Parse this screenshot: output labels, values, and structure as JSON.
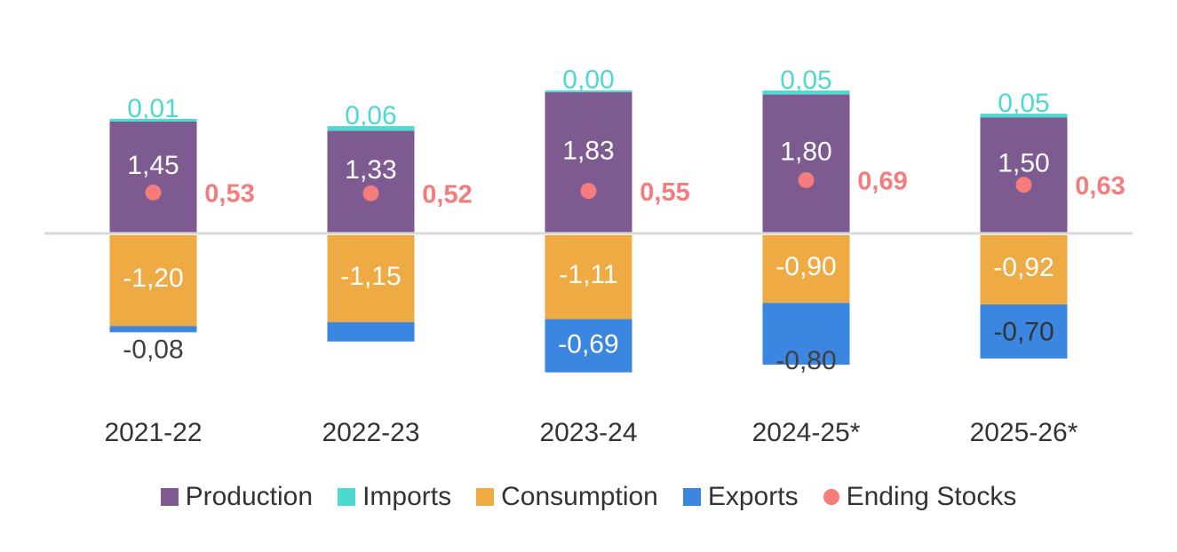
{
  "chart_data": {
    "type": "bar",
    "stacked": true,
    "categories": [
      "2021-22",
      "2022-23",
      "2023-24",
      "2024-25*",
      "2025-26*"
    ],
    "series": [
      {
        "name": "Production",
        "color": "#7d5a8f",
        "values": [
          1.45,
          1.33,
          1.83,
          1.8,
          1.5
        ],
        "labels": [
          "1,45",
          "1,33",
          "1,83",
          "1,80",
          "1,50"
        ]
      },
      {
        "name": "Imports",
        "color": "#4dd9d0",
        "values": [
          0.01,
          0.06,
          0.0,
          0.05,
          0.05
        ],
        "labels": [
          "0,01",
          "0,06",
          "0,00",
          "0,05",
          "0,05"
        ]
      },
      {
        "name": "Consumption",
        "color": "#eeab44",
        "values": [
          -1.2,
          -1.15,
          -1.11,
          -0.9,
          -0.92
        ],
        "labels": [
          "-1,20",
          "-1,15",
          "-1,11",
          "-0,90",
          "-0,92"
        ]
      },
      {
        "name": "Exports",
        "color": "#3b86e0",
        "values": [
          -0.08,
          -0.25,
          -0.69,
          -0.8,
          -0.7
        ],
        "labels": [
          "-0,08",
          "",
          "-0,69",
          "-0,80",
          "-0,70"
        ]
      }
    ],
    "line_series": {
      "name": "Ending Stocks",
      "type": "scatter",
      "color": "#f47c7c",
      "values": [
        0.53,
        0.52,
        0.55,
        0.69,
        0.63
      ],
      "labels": [
        "0,53",
        "0,52",
        "0,55",
        "0,69",
        "0,63"
      ]
    },
    "ylim": [
      -2.0,
      2.0
    ],
    "grid": false,
    "legend_position": "bottom",
    "title": "",
    "xlabel": "",
    "ylabel": ""
  },
  "legend": [
    {
      "name": "Production",
      "color": "#7d5a8f",
      "shape": "square"
    },
    {
      "name": "Imports",
      "color": "#4dd9d0",
      "shape": "square"
    },
    {
      "name": "Consumption",
      "color": "#eeab44",
      "shape": "square"
    },
    {
      "name": "Exports",
      "color": "#3b86e0",
      "shape": "square"
    },
    {
      "name": "Ending Stocks",
      "color": "#f47c7c",
      "shape": "circle"
    }
  ]
}
